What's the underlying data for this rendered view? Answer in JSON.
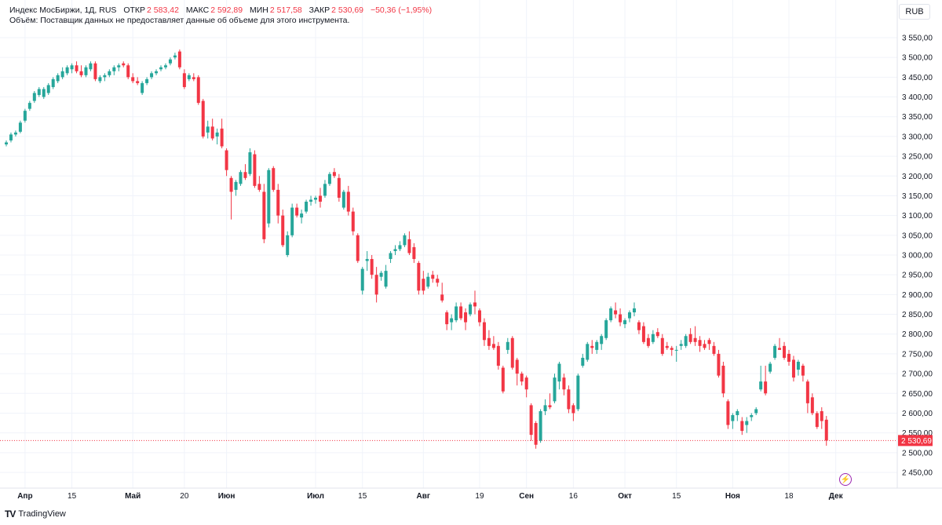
{
  "legend": {
    "symbol": "Индекс МосБиржи, 1Д, RUS",
    "open_label": "ОТКР",
    "open_value": "2 583,42",
    "high_label": "МАКС",
    "high_value": "2 592,89",
    "low_label": "МИН",
    "low_value": "2 517,58",
    "close_label": "ЗАКР",
    "close_value": "2 530,69",
    "change": "−50,36 (−1,95%)",
    "volume_note": "Объём: Поставщик данных не предоставляет данные об объеме для этого инструмента."
  },
  "currency_button": "RUB",
  "last_price_label": "2 530,69",
  "brand": "TradingView",
  "brand_logo": "TV",
  "bolt_icon": "⚡",
  "colors": {
    "up": "#26a69a",
    "down": "#f23645",
    "grid": "#f0f3fa",
    "axis_text": "#131722",
    "pulse": "#9c27b0"
  },
  "chart_data": {
    "type": "candlestick",
    "title": "Индекс МосБиржи",
    "ylim": [
      2400,
      3600
    ],
    "y_ticks": [
      2450,
      2500,
      2550,
      2600,
      2650,
      2700,
      2750,
      2800,
      2850,
      2900,
      2950,
      3000,
      3050,
      3100,
      3150,
      3200,
      3250,
      3300,
      3350,
      3400,
      3450,
      3500,
      3550
    ],
    "y_tick_labels": [
      "2 450,00",
      "2 500,00",
      "2 550,00",
      "2 600,00",
      "2 650,00",
      "2 700,00",
      "2 750,00",
      "2 800,00",
      "2 850,00",
      "2 900,00",
      "2 950,00",
      "3 000,00",
      "3 050,00",
      "3 100,00",
      "3 150,00",
      "3 200,00",
      "3 250,00",
      "3 300,00",
      "3 350,00",
      "3 400,00",
      "3 450,00",
      "3 500,00",
      "3 550,00"
    ],
    "x_ticks": [
      {
        "label": "Апр",
        "index": 4,
        "bold": true
      },
      {
        "label": "15",
        "index": 14,
        "bold": false
      },
      {
        "label": "Май",
        "index": 27,
        "bold": true
      },
      {
        "label": "20",
        "index": 38,
        "bold": false
      },
      {
        "label": "Июн",
        "index": 47,
        "bold": true
      },
      {
        "label": "Июл",
        "index": 66,
        "bold": true
      },
      {
        "label": "15",
        "index": 76,
        "bold": false
      },
      {
        "label": "Авг",
        "index": 89,
        "bold": true
      },
      {
        "label": "19",
        "index": 101,
        "bold": false
      },
      {
        "label": "Сен",
        "index": 111,
        "bold": true
      },
      {
        "label": "16",
        "index": 121,
        "bold": false
      },
      {
        "label": "Окт",
        "index": 132,
        "bold": true
      },
      {
        "label": "15",
        "index": 143,
        "bold": false
      },
      {
        "label": "Ноя",
        "index": 155,
        "bold": true
      },
      {
        "label": "18",
        "index": 167,
        "bold": false
      },
      {
        "label": "Дек",
        "index": 177,
        "bold": true
      }
    ],
    "last_price": 2530.69,
    "candles": [
      {
        "o": 3280,
        "h": 3290,
        "l": 3275,
        "c": 3285
      },
      {
        "o": 3290,
        "h": 3310,
        "l": 3285,
        "c": 3305
      },
      {
        "o": 3305,
        "h": 3315,
        "l": 3300,
        "c": 3310
      },
      {
        "o": 3312,
        "h": 3340,
        "l": 3308,
        "c": 3335
      },
      {
        "o": 3340,
        "h": 3370,
        "l": 3335,
        "c": 3365
      },
      {
        "o": 3370,
        "h": 3390,
        "l": 3365,
        "c": 3385
      },
      {
        "o": 3390,
        "h": 3415,
        "l": 3385,
        "c": 3410
      },
      {
        "o": 3405,
        "h": 3425,
        "l": 3400,
        "c": 3420
      },
      {
        "o": 3400,
        "h": 3425,
        "l": 3395,
        "c": 3420
      },
      {
        "o": 3410,
        "h": 3435,
        "l": 3405,
        "c": 3430
      },
      {
        "o": 3425,
        "h": 3450,
        "l": 3420,
        "c": 3445
      },
      {
        "o": 3440,
        "h": 3460,
        "l": 3435,
        "c": 3455
      },
      {
        "o": 3450,
        "h": 3475,
        "l": 3445,
        "c": 3465
      },
      {
        "o": 3460,
        "h": 3480,
        "l": 3455,
        "c": 3475
      },
      {
        "o": 3470,
        "h": 3485,
        "l": 3460,
        "c": 3480
      },
      {
        "o": 3480,
        "h": 3490,
        "l": 3460,
        "c": 3465
      },
      {
        "o": 3465,
        "h": 3480,
        "l": 3450,
        "c": 3455
      },
      {
        "o": 3455,
        "h": 3480,
        "l": 3450,
        "c": 3475
      },
      {
        "o": 3470,
        "h": 3490,
        "l": 3465,
        "c": 3485
      },
      {
        "o": 3485,
        "h": 3490,
        "l": 3440,
        "c": 3445
      },
      {
        "o": 3440,
        "h": 3455,
        "l": 3435,
        "c": 3450
      },
      {
        "o": 3450,
        "h": 3460,
        "l": 3440,
        "c": 3455
      },
      {
        "o": 3455,
        "h": 3470,
        "l": 3450,
        "c": 3465
      },
      {
        "o": 3465,
        "h": 3480,
        "l": 3455,
        "c": 3475
      },
      {
        "o": 3475,
        "h": 3485,
        "l": 3465,
        "c": 3480
      },
      {
        "o": 3485,
        "h": 3490,
        "l": 3475,
        "c": 3480
      },
      {
        "o": 3480,
        "h": 3485,
        "l": 3445,
        "c": 3450
      },
      {
        "o": 3450,
        "h": 3460,
        "l": 3435,
        "c": 3440
      },
      {
        "o": 3440,
        "h": 3450,
        "l": 3430,
        "c": 3435
      },
      {
        "o": 3410,
        "h": 3440,
        "l": 3405,
        "c": 3435
      },
      {
        "o": 3435,
        "h": 3450,
        "l": 3430,
        "c": 3445
      },
      {
        "o": 3450,
        "h": 3465,
        "l": 3445,
        "c": 3460
      },
      {
        "o": 3460,
        "h": 3470,
        "l": 3455,
        "c": 3465
      },
      {
        "o": 3470,
        "h": 3480,
        "l": 3465,
        "c": 3475
      },
      {
        "o": 3475,
        "h": 3485,
        "l": 3470,
        "c": 3480
      },
      {
        "o": 3485,
        "h": 3500,
        "l": 3480,
        "c": 3495
      },
      {
        "o": 3500,
        "h": 3512,
        "l": 3495,
        "c": 3505
      },
      {
        "o": 3515,
        "h": 3520,
        "l": 3470,
        "c": 3475
      },
      {
        "o": 3460,
        "h": 3470,
        "l": 3420,
        "c": 3425
      },
      {
        "o": 3445,
        "h": 3460,
        "l": 3440,
        "c": 3455
      },
      {
        "o": 3450,
        "h": 3460,
        "l": 3440,
        "c": 3445
      },
      {
        "o": 3450,
        "h": 3455,
        "l": 3380,
        "c": 3385
      },
      {
        "o": 3390,
        "h": 3395,
        "l": 3295,
        "c": 3300
      },
      {
        "o": 3310,
        "h": 3340,
        "l": 3295,
        "c": 3325
      },
      {
        "o": 3325,
        "h": 3345,
        "l": 3290,
        "c": 3295
      },
      {
        "o": 3300,
        "h": 3320,
        "l": 3280,
        "c": 3310
      },
      {
        "o": 3320,
        "h": 3345,
        "l": 3270,
        "c": 3275
      },
      {
        "o": 3265,
        "h": 3270,
        "l": 3200,
        "c": 3215
      },
      {
        "o": 3195,
        "h": 3200,
        "l": 3090,
        "c": 3160
      },
      {
        "o": 3165,
        "h": 3190,
        "l": 3150,
        "c": 3185
      },
      {
        "o": 3180,
        "h": 3215,
        "l": 3175,
        "c": 3210
      },
      {
        "o": 3210,
        "h": 3230,
        "l": 3190,
        "c": 3195
      },
      {
        "o": 3205,
        "h": 3270,
        "l": 3200,
        "c": 3260
      },
      {
        "o": 3255,
        "h": 3265,
        "l": 3170,
        "c": 3175
      },
      {
        "o": 3180,
        "h": 3200,
        "l": 3160,
        "c": 3165
      },
      {
        "o": 3160,
        "h": 3180,
        "l": 3030,
        "c": 3040
      },
      {
        "o": 3080,
        "h": 3220,
        "l": 3070,
        "c": 3215
      },
      {
        "o": 3220,
        "h": 3225,
        "l": 3160,
        "c": 3165
      },
      {
        "o": 3165,
        "h": 3180,
        "l": 3080,
        "c": 3100
      },
      {
        "o": 3100,
        "h": 3115,
        "l": 3020,
        "c": 3025
      },
      {
        "o": 3000,
        "h": 3060,
        "l": 2995,
        "c": 3050
      },
      {
        "o": 3050,
        "h": 3130,
        "l": 3045,
        "c": 3120
      },
      {
        "o": 3120,
        "h": 3130,
        "l": 3095,
        "c": 3100
      },
      {
        "o": 3095,
        "h": 3115,
        "l": 3080,
        "c": 3105
      },
      {
        "o": 3110,
        "h": 3140,
        "l": 3105,
        "c": 3135
      },
      {
        "o": 3135,
        "h": 3150,
        "l": 3125,
        "c": 3140
      },
      {
        "o": 3140,
        "h": 3150,
        "l": 3130,
        "c": 3145
      },
      {
        "o": 3150,
        "h": 3170,
        "l": 3120,
        "c": 3135
      },
      {
        "o": 3150,
        "h": 3190,
        "l": 3145,
        "c": 3180
      },
      {
        "o": 3180,
        "h": 3210,
        "l": 3175,
        "c": 3205
      },
      {
        "o": 3210,
        "h": 3220,
        "l": 3195,
        "c": 3200
      },
      {
        "o": 3195,
        "h": 3205,
        "l": 3135,
        "c": 3145
      },
      {
        "o": 3120,
        "h": 3165,
        "l": 3115,
        "c": 3160
      },
      {
        "o": 3160,
        "h": 3175,
        "l": 3100,
        "c": 3110
      },
      {
        "o": 3110,
        "h": 3120,
        "l": 3050,
        "c": 3060
      },
      {
        "o": 3050,
        "h": 3055,
        "l": 2980,
        "c": 2985
      },
      {
        "o": 2910,
        "h": 2970,
        "l": 2900,
        "c": 2965
      },
      {
        "o": 2985,
        "h": 3010,
        "l": 2960,
        "c": 2990
      },
      {
        "o": 2990,
        "h": 3000,
        "l": 2940,
        "c": 2950
      },
      {
        "o": 2950,
        "h": 2970,
        "l": 2880,
        "c": 2900
      },
      {
        "o": 2945,
        "h": 2960,
        "l": 2935,
        "c": 2955
      },
      {
        "o": 2920,
        "h": 2975,
        "l": 2915,
        "c": 2960
      },
      {
        "o": 2990,
        "h": 3010,
        "l": 2980,
        "c": 3005
      },
      {
        "o": 3010,
        "h": 3025,
        "l": 3000,
        "c": 3015
      },
      {
        "o": 3015,
        "h": 3035,
        "l": 3010,
        "c": 3025
      },
      {
        "o": 3025,
        "h": 3055,
        "l": 3020,
        "c": 3050
      },
      {
        "o": 3040,
        "h": 3060,
        "l": 3000,
        "c": 3005
      },
      {
        "o": 3020,
        "h": 3030,
        "l": 2980,
        "c": 2990
      },
      {
        "o": 2980,
        "h": 2985,
        "l": 2900,
        "c": 2910
      },
      {
        "o": 2940,
        "h": 2960,
        "l": 2900,
        "c": 2910
      },
      {
        "o": 2920,
        "h": 2955,
        "l": 2915,
        "c": 2945
      },
      {
        "o": 2950,
        "h": 2960,
        "l": 2930,
        "c": 2940
      },
      {
        "o": 2940,
        "h": 2950,
        "l": 2920,
        "c": 2930
      },
      {
        "o": 2900,
        "h": 2930,
        "l": 2880,
        "c": 2885
      },
      {
        "o": 2855,
        "h": 2860,
        "l": 2810,
        "c": 2825
      },
      {
        "o": 2830,
        "h": 2850,
        "l": 2810,
        "c": 2840
      },
      {
        "o": 2835,
        "h": 2880,
        "l": 2830,
        "c": 2870
      },
      {
        "o": 2870,
        "h": 2880,
        "l": 2835,
        "c": 2840
      },
      {
        "o": 2855,
        "h": 2865,
        "l": 2810,
        "c": 2830
      },
      {
        "o": 2850,
        "h": 2880,
        "l": 2845,
        "c": 2875
      },
      {
        "o": 2880,
        "h": 2910,
        "l": 2850,
        "c": 2870
      },
      {
        "o": 2860,
        "h": 2865,
        "l": 2820,
        "c": 2830
      },
      {
        "o": 2830,
        "h": 2840,
        "l": 2770,
        "c": 2785
      },
      {
        "o": 2790,
        "h": 2810,
        "l": 2760,
        "c": 2770
      },
      {
        "o": 2775,
        "h": 2795,
        "l": 2760,
        "c": 2765
      },
      {
        "o": 2770,
        "h": 2780,
        "l": 2710,
        "c": 2720
      },
      {
        "o": 2715,
        "h": 2720,
        "l": 2650,
        "c": 2655
      },
      {
        "o": 2760,
        "h": 2790,
        "l": 2750,
        "c": 2780
      },
      {
        "o": 2790,
        "h": 2795,
        "l": 2710,
        "c": 2715
      },
      {
        "o": 2735,
        "h": 2740,
        "l": 2670,
        "c": 2700
      },
      {
        "o": 2700,
        "h": 2705,
        "l": 2670,
        "c": 2680
      },
      {
        "o": 2690,
        "h": 2695,
        "l": 2640,
        "c": 2660
      },
      {
        "o": 2620,
        "h": 2625,
        "l": 2530,
        "c": 2545
      },
      {
        "o": 2575,
        "h": 2580,
        "l": 2510,
        "c": 2520
      },
      {
        "o": 2530,
        "h": 2610,
        "l": 2525,
        "c": 2605
      },
      {
        "o": 2605,
        "h": 2635,
        "l": 2595,
        "c": 2620
      },
      {
        "o": 2620,
        "h": 2650,
        "l": 2610,
        "c": 2615
      },
      {
        "o": 2630,
        "h": 2700,
        "l": 2625,
        "c": 2690
      },
      {
        "o": 2680,
        "h": 2730,
        "l": 2660,
        "c": 2725
      },
      {
        "o": 2690,
        "h": 2700,
        "l": 2645,
        "c": 2660
      },
      {
        "o": 2660,
        "h": 2670,
        "l": 2600,
        "c": 2610
      },
      {
        "o": 2620,
        "h": 2625,
        "l": 2580,
        "c": 2600
      },
      {
        "o": 2610,
        "h": 2700,
        "l": 2605,
        "c": 2695
      },
      {
        "o": 2720,
        "h": 2750,
        "l": 2715,
        "c": 2740
      },
      {
        "o": 2735,
        "h": 2780,
        "l": 2730,
        "c": 2775
      },
      {
        "o": 2770,
        "h": 2785,
        "l": 2750,
        "c": 2765
      },
      {
        "o": 2760,
        "h": 2785,
        "l": 2750,
        "c": 2780
      },
      {
        "o": 2775,
        "h": 2800,
        "l": 2760,
        "c": 2795
      },
      {
        "o": 2790,
        "h": 2840,
        "l": 2785,
        "c": 2835
      },
      {
        "o": 2835,
        "h": 2870,
        "l": 2830,
        "c": 2865
      },
      {
        "o": 2860,
        "h": 2880,
        "l": 2840,
        "c": 2850
      },
      {
        "o": 2850,
        "h": 2865,
        "l": 2820,
        "c": 2830
      },
      {
        "o": 2825,
        "h": 2840,
        "l": 2815,
        "c": 2835
      },
      {
        "o": 2840,
        "h": 2860,
        "l": 2830,
        "c": 2855
      },
      {
        "o": 2855,
        "h": 2880,
        "l": 2845,
        "c": 2865
      },
      {
        "o": 2830,
        "h": 2835,
        "l": 2800,
        "c": 2810
      },
      {
        "o": 2820,
        "h": 2830,
        "l": 2775,
        "c": 2780
      },
      {
        "o": 2790,
        "h": 2800,
        "l": 2765,
        "c": 2770
      },
      {
        "o": 2780,
        "h": 2810,
        "l": 2775,
        "c": 2800
      },
      {
        "o": 2805,
        "h": 2815,
        "l": 2790,
        "c": 2795
      },
      {
        "o": 2790,
        "h": 2800,
        "l": 2745,
        "c": 2750
      },
      {
        "o": 2770,
        "h": 2780,
        "l": 2760,
        "c": 2765
      },
      {
        "o": 2765,
        "h": 2770,
        "l": 2745,
        "c": 2760
      },
      {
        "o": 2760,
        "h": 2770,
        "l": 2730,
        "c": 2760
      },
      {
        "o": 2770,
        "h": 2785,
        "l": 2760,
        "c": 2775
      },
      {
        "o": 2770,
        "h": 2800,
        "l": 2765,
        "c": 2795
      },
      {
        "o": 2800,
        "h": 2815,
        "l": 2775,
        "c": 2780
      },
      {
        "o": 2790,
        "h": 2820,
        "l": 2770,
        "c": 2780
      },
      {
        "o": 2785,
        "h": 2795,
        "l": 2755,
        "c": 2770
      },
      {
        "o": 2775,
        "h": 2785,
        "l": 2760,
        "c": 2765
      },
      {
        "o": 2785,
        "h": 2790,
        "l": 2760,
        "c": 2775
      },
      {
        "o": 2770,
        "h": 2780,
        "l": 2745,
        "c": 2750
      },
      {
        "o": 2750,
        "h": 2760,
        "l": 2690,
        "c": 2695
      },
      {
        "o": 2720,
        "h": 2730,
        "l": 2640,
        "c": 2650
      },
      {
        "o": 2630,
        "h": 2635,
        "l": 2560,
        "c": 2570
      },
      {
        "o": 2580,
        "h": 2600,
        "l": 2560,
        "c": 2595
      },
      {
        "o": 2595,
        "h": 2610,
        "l": 2580,
        "c": 2605
      },
      {
        "o": 2580,
        "h": 2590,
        "l": 2545,
        "c": 2555
      },
      {
        "o": 2570,
        "h": 2590,
        "l": 2550,
        "c": 2580
      },
      {
        "o": 2590,
        "h": 2600,
        "l": 2580,
        "c": 2595
      },
      {
        "o": 2600,
        "h": 2615,
        "l": 2595,
        "c": 2610
      },
      {
        "o": 2660,
        "h": 2720,
        "l": 2655,
        "c": 2680
      },
      {
        "o": 2680,
        "h": 2720,
        "l": 2645,
        "c": 2650
      },
      {
        "o": 2705,
        "h": 2730,
        "l": 2700,
        "c": 2725
      },
      {
        "o": 2740,
        "h": 2775,
        "l": 2735,
        "c": 2770
      },
      {
        "o": 2765,
        "h": 2790,
        "l": 2760,
        "c": 2760
      },
      {
        "o": 2770,
        "h": 2780,
        "l": 2735,
        "c": 2740
      },
      {
        "o": 2750,
        "h": 2760,
        "l": 2720,
        "c": 2730
      },
      {
        "o": 2735,
        "h": 2745,
        "l": 2680,
        "c": 2690
      },
      {
        "o": 2710,
        "h": 2735,
        "l": 2695,
        "c": 2730
      },
      {
        "o": 2720,
        "h": 2725,
        "l": 2680,
        "c": 2695
      },
      {
        "o": 2680,
        "h": 2685,
        "l": 2600,
        "c": 2625
      },
      {
        "o": 2640,
        "h": 2650,
        "l": 2595,
        "c": 2600
      },
      {
        "o": 2600,
        "h": 2605,
        "l": 2560,
        "c": 2565
      },
      {
        "o": 2605,
        "h": 2615,
        "l": 2560,
        "c": 2580
      },
      {
        "o": 2583.42,
        "h": 2592.89,
        "l": 2517.58,
        "c": 2530.69
      }
    ]
  }
}
